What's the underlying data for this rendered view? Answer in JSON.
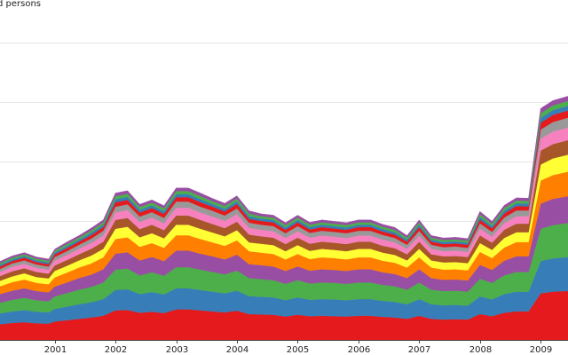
{
  "chart_data": {
    "type": "area",
    "stacked": true,
    "title": "d persons",
    "xlabel": "",
    "ylabel": "",
    "x_tick_labels": [
      "2001",
      "2002",
      "2003",
      "2004",
      "2005",
      "2006",
      "2007",
      "2008",
      "2009"
    ],
    "x_tick_years": [
      2001,
      2002,
      2003,
      2004,
      2005,
      2006,
      2007,
      2008,
      2009
    ],
    "xlim": [
      2000.1,
      2009.45
    ],
    "ylim": [
      0,
      100
    ],
    "grid": true,
    "legend": "none",
    "x": [
      2000.1,
      2000.3,
      2000.5,
      2000.7,
      2000.9,
      2001.0,
      2001.2,
      2001.4,
      2001.6,
      2001.8,
      2002.0,
      2002.2,
      2002.4,
      2002.6,
      2002.8,
      2003.0,
      2003.2,
      2003.4,
      2003.6,
      2003.8,
      2004.0,
      2004.2,
      2004.4,
      2004.6,
      2004.8,
      2005.0,
      2005.2,
      2005.4,
      2005.6,
      2005.8,
      2006.0,
      2006.2,
      2006.4,
      2006.6,
      2006.8,
      2007.0,
      2007.2,
      2007.4,
      2007.6,
      2007.8,
      2008.0,
      2008.2,
      2008.4,
      2008.6,
      2008.8,
      2009.0,
      2009.2,
      2009.45
    ],
    "totals": [
      22.5,
      24.5,
      25.7,
      24.3,
      23.7,
      26.7,
      28.5,
      30.5,
      32.6,
      35.0,
      43.0,
      43.6,
      39.6,
      41.2,
      39.3,
      44.5,
      44.7,
      42.9,
      41.4,
      39.9,
      42.3,
      37.7,
      37.3,
      36.8,
      34.3,
      36.6,
      34.4,
      35.1,
      34.8,
      34.2,
      35.3,
      35.0,
      33.8,
      32.9,
      30.6,
      35.2,
      30.6,
      29.7,
      30.1,
      29.6,
      37.5,
      34.8,
      39.4,
      41.7,
      41.5,
      67.7,
      70.3,
      71.5
    ],
    "series": [
      {
        "name": "red",
        "color": "#e41a1c",
        "values": [
          4.6,
          5.0,
          5.2,
          4.9,
          4.8,
          5.4,
          5.8,
          6.2,
          6.6,
          7.1,
          8.7,
          8.8,
          8.0,
          8.3,
          7.9,
          9.0,
          9.0,
          8.7,
          8.4,
          8.1,
          8.6,
          7.6,
          7.5,
          7.4,
          6.9,
          7.4,
          7.0,
          7.1,
          7.0,
          6.9,
          7.1,
          7.1,
          6.8,
          6.6,
          6.2,
          7.1,
          6.2,
          6.0,
          6.1,
          6.0,
          7.6,
          7.0,
          8.0,
          8.4,
          8.4,
          13.7,
          14.2,
          14.4
        ]
      },
      {
        "name": "blue",
        "color": "#377eb8",
        "values": [
          3.2,
          3.4,
          3.6,
          3.4,
          3.3,
          3.7,
          4.0,
          4.3,
          4.5,
          4.9,
          6.0,
          6.1,
          5.5,
          5.8,
          5.5,
          6.2,
          6.2,
          6.0,
          5.8,
          5.6,
          5.9,
          5.3,
          5.2,
          5.1,
          4.8,
          5.1,
          4.8,
          4.9,
          4.9,
          4.8,
          4.9,
          4.9,
          4.7,
          4.6,
          4.3,
          4.9,
          4.3,
          4.2,
          4.2,
          4.1,
          5.2,
          4.9,
          5.5,
          5.8,
          5.8,
          9.5,
          9.8,
          10.0
        ]
      },
      {
        "name": "green",
        "color": "#4daf4a",
        "values": [
          3.2,
          3.4,
          3.6,
          3.4,
          3.3,
          3.7,
          4.0,
          4.3,
          4.5,
          4.9,
          6.0,
          6.1,
          5.5,
          5.8,
          5.5,
          6.2,
          6.2,
          6.0,
          5.8,
          5.6,
          5.9,
          5.3,
          5.2,
          5.1,
          4.8,
          5.1,
          4.8,
          4.9,
          4.9,
          4.8,
          4.9,
          4.9,
          4.7,
          4.6,
          4.3,
          4.9,
          4.3,
          4.2,
          4.2,
          4.1,
          5.2,
          4.9,
          5.5,
          5.8,
          5.8,
          9.5,
          9.8,
          10.0
        ]
      },
      {
        "name": "purple",
        "color": "#984ea3",
        "values": [
          2.5,
          2.7,
          2.8,
          2.7,
          2.6,
          2.9,
          3.1,
          3.4,
          3.6,
          3.9,
          4.7,
          4.8,
          4.4,
          4.5,
          4.3,
          4.9,
          4.9,
          4.7,
          4.6,
          4.4,
          4.7,
          4.1,
          4.1,
          4.0,
          3.8,
          4.0,
          3.8,
          3.9,
          3.8,
          3.8,
          3.9,
          3.9,
          3.7,
          3.6,
          3.4,
          3.9,
          3.4,
          3.3,
          3.3,
          3.3,
          4.1,
          3.8,
          4.3,
          4.6,
          4.6,
          7.4,
          7.7,
          7.9
        ]
      },
      {
        "name": "orange",
        "color": "#ff7f00",
        "values": [
          2.3,
          2.5,
          2.6,
          2.4,
          2.4,
          2.7,
          2.9,
          3.1,
          3.3,
          3.5,
          4.3,
          4.4,
          4.0,
          4.1,
          3.9,
          4.5,
          4.5,
          4.3,
          4.1,
          4.0,
          4.2,
          3.8,
          3.7,
          3.7,
          3.4,
          3.7,
          3.4,
          3.5,
          3.5,
          3.4,
          3.5,
          3.5,
          3.4,
          3.3,
          3.1,
          3.5,
          3.1,
          3.0,
          3.0,
          3.0,
          3.8,
          3.5,
          3.9,
          4.2,
          4.2,
          6.8,
          7.0,
          7.2
        ]
      },
      {
        "name": "yellow",
        "color": "#ffff33",
        "values": [
          1.6,
          1.7,
          1.8,
          1.7,
          1.7,
          1.9,
          2.0,
          2.1,
          2.3,
          2.5,
          3.0,
          3.1,
          2.8,
          2.9,
          2.8,
          3.1,
          3.1,
          3.0,
          2.9,
          2.8,
          3.0,
          2.6,
          2.6,
          2.6,
          2.4,
          2.6,
          2.4,
          2.5,
          2.4,
          2.4,
          2.5,
          2.5,
          2.4,
          2.3,
          2.1,
          2.5,
          2.1,
          2.1,
          2.1,
          2.1,
          2.6,
          2.4,
          2.8,
          2.9,
          2.9,
          4.7,
          4.9,
          5.0
        ]
      },
      {
        "name": "brown",
        "color": "#a65628",
        "values": [
          1.4,
          1.5,
          1.5,
          1.5,
          1.4,
          1.6,
          1.7,
          1.8,
          2.0,
          2.1,
          2.6,
          2.6,
          2.4,
          2.5,
          2.4,
          2.7,
          2.7,
          2.6,
          2.5,
          2.4,
          2.5,
          2.3,
          2.2,
          2.2,
          2.1,
          2.2,
          2.1,
          2.1,
          2.1,
          2.1,
          2.1,
          2.1,
          2.0,
          2.0,
          1.8,
          2.1,
          1.8,
          1.8,
          1.8,
          1.8,
          2.3,
          2.1,
          2.4,
          2.5,
          2.5,
          4.1,
          4.2,
          4.3
        ]
      },
      {
        "name": "pink",
        "color": "#f781bf",
        "values": [
          1.2,
          1.3,
          1.3,
          1.2,
          1.2,
          1.4,
          1.5,
          1.6,
          1.7,
          1.8,
          2.2,
          2.3,
          2.1,
          2.1,
          2.0,
          2.3,
          2.3,
          2.2,
          2.2,
          2.1,
          2.2,
          2.0,
          1.9,
          1.9,
          1.8,
          1.9,
          1.8,
          1.8,
          1.8,
          1.8,
          1.8,
          1.8,
          1.8,
          1.7,
          1.6,
          1.8,
          1.6,
          1.5,
          1.6,
          1.5,
          2.0,
          1.8,
          2.0,
          2.2,
          2.2,
          3.5,
          3.7,
          3.7
        ]
      },
      {
        "name": "grey",
        "color": "#999999",
        "values": [
          0.9,
          1.0,
          1.0,
          1.0,
          0.9,
          1.1,
          1.1,
          1.2,
          1.3,
          1.4,
          1.7,
          1.7,
          1.6,
          1.6,
          1.6,
          1.8,
          1.8,
          1.7,
          1.7,
          1.6,
          1.7,
          1.5,
          1.5,
          1.5,
          1.4,
          1.5,
          1.4,
          1.4,
          1.4,
          1.4,
          1.4,
          1.4,
          1.4,
          1.3,
          1.2,
          1.4,
          1.2,
          1.2,
          1.2,
          1.2,
          1.5,
          1.4,
          1.6,
          1.7,
          1.7,
          2.7,
          2.8,
          2.9
        ]
      },
      {
        "name": "red-2",
        "color": "#e41a1c",
        "values": [
          0.7,
          0.7,
          0.8,
          0.7,
          0.7,
          0.8,
          0.9,
          0.9,
          1.0,
          1.1,
          1.3,
          1.3,
          1.2,
          1.2,
          1.2,
          1.3,
          1.3,
          1.3,
          1.2,
          1.2,
          1.3,
          1.1,
          1.1,
          1.1,
          1.0,
          1.1,
          1.0,
          1.1,
          1.0,
          1.0,
          1.1,
          1.1,
          1.0,
          1.0,
          0.9,
          1.1,
          0.9,
          0.9,
          0.9,
          0.9,
          1.1,
          1.0,
          1.2,
          1.3,
          1.2,
          2.0,
          2.1,
          2.1
        ]
      },
      {
        "name": "blue-2",
        "color": "#377eb8",
        "values": [
          0.5,
          0.5,
          0.5,
          0.5,
          0.5,
          0.5,
          0.6,
          0.6,
          0.7,
          0.7,
          0.9,
          0.9,
          0.8,
          0.8,
          0.8,
          0.9,
          0.9,
          0.9,
          0.8,
          0.8,
          0.8,
          0.8,
          0.7,
          0.7,
          0.7,
          0.7,
          0.7,
          0.7,
          0.7,
          0.7,
          0.7,
          0.7,
          0.7,
          0.7,
          0.6,
          0.7,
          0.6,
          0.6,
          0.6,
          0.6,
          0.8,
          0.7,
          0.8,
          0.8,
          0.8,
          1.4,
          1.4,
          1.4
        ]
      },
      {
        "name": "green-2",
        "color": "#4daf4a",
        "values": [
          0.5,
          0.5,
          0.5,
          0.5,
          0.5,
          0.5,
          0.6,
          0.6,
          0.7,
          0.7,
          0.9,
          0.9,
          0.8,
          0.8,
          0.8,
          0.9,
          0.9,
          0.9,
          0.8,
          0.8,
          0.8,
          0.8,
          0.7,
          0.7,
          0.7,
          0.7,
          0.7,
          0.7,
          0.7,
          0.7,
          0.7,
          0.7,
          0.7,
          0.7,
          0.6,
          0.7,
          0.6,
          0.6,
          0.6,
          0.6,
          0.8,
          0.7,
          0.8,
          0.8,
          0.8,
          1.4,
          1.4,
          1.4
        ]
      },
      {
        "name": "purple-2",
        "color": "#984ea3",
        "values": [
          0.5,
          0.5,
          0.5,
          0.5,
          0.5,
          0.5,
          0.6,
          0.6,
          0.7,
          0.7,
          0.9,
          0.9,
          0.8,
          0.8,
          0.8,
          0.9,
          0.9,
          0.9,
          0.8,
          0.8,
          0.8,
          0.8,
          0.7,
          0.7,
          0.7,
          0.7,
          0.7,
          0.7,
          0.7,
          0.7,
          0.7,
          0.7,
          0.7,
          0.7,
          0.6,
          0.7,
          0.6,
          0.6,
          0.6,
          0.6,
          0.8,
          0.7,
          0.8,
          0.8,
          0.8,
          1.4,
          1.4,
          1.4
        ]
      }
    ],
    "y_gridlines": [
      17.5,
      35,
      52.5,
      70,
      87.5
    ]
  }
}
